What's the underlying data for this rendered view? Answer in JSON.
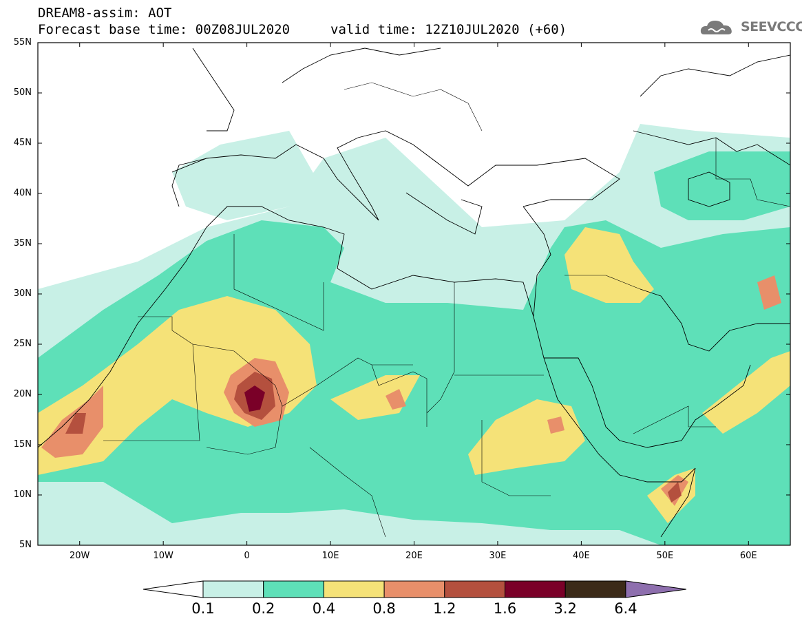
{
  "header": {
    "line1": "DREAM8-assim: AOT",
    "line2": "Forecast base time: 00Z08JUL2020",
    "line3": "valid time: 12Z10JUL2020 (+60)",
    "logo_text": "SEEVCCC"
  },
  "map": {
    "lat_labels": [
      "55N",
      "50N",
      "45N",
      "40N",
      "35N",
      "30N",
      "25N",
      "20N",
      "15N",
      "10N",
      "5N"
    ],
    "lon_labels": [
      "20W",
      "10W",
      "0",
      "10E",
      "20E",
      "30E",
      "40E",
      "50E",
      "60E"
    ],
    "extent": {
      "lon_min": -25,
      "lon_max": 65,
      "lat_min": 5,
      "lat_max": 55
    }
  },
  "colorbar": {
    "levels": [
      "0.1",
      "0.2",
      "0.4",
      "0.8",
      "1.2",
      "1.6",
      "3.2",
      "6.4"
    ],
    "colors": [
      "#c8f0e6",
      "#5ee0b8",
      "#f5e278",
      "#e88f6a",
      "#b4503e",
      "#7a0028",
      "#3b2a18",
      "#8e6fae"
    ]
  }
}
